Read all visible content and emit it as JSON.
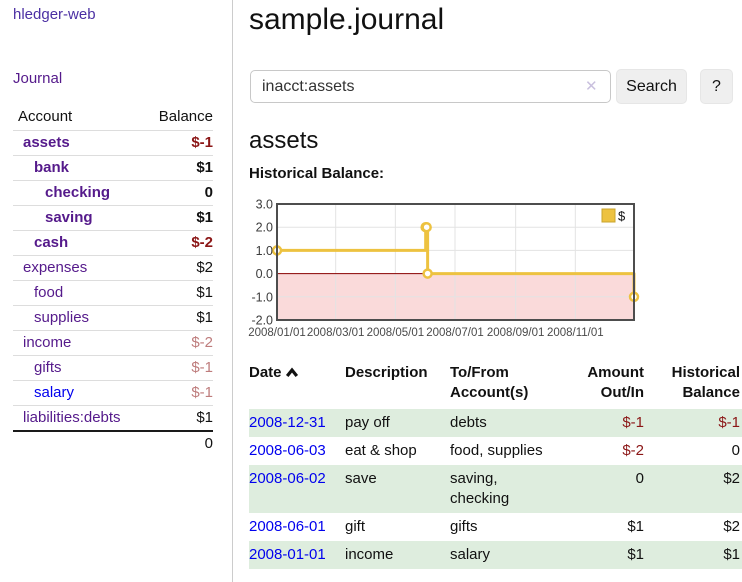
{
  "app": {
    "title": "hledger-web"
  },
  "sidebar": {
    "journal_link": "Journal",
    "accounts": {
      "col_account": "Account",
      "col_balance": "Balance",
      "rows": [
        {
          "name": "assets",
          "balance": "$-1",
          "depth": 0,
          "bold": true,
          "name_color": "purple",
          "balance_color": "negative"
        },
        {
          "name": "bank",
          "balance": "$1",
          "depth": 1,
          "bold": true,
          "name_color": "purple",
          "balance_color": "black"
        },
        {
          "name": "checking",
          "balance": "0",
          "depth": 2,
          "bold": true,
          "name_color": "purple",
          "balance_color": "black"
        },
        {
          "name": "saving",
          "balance": "$1",
          "depth": 2,
          "bold": true,
          "name_color": "purple",
          "balance_color": "black"
        },
        {
          "name": "cash",
          "balance": "$-2",
          "depth": 1,
          "bold": true,
          "name_color": "purple",
          "balance_color": "negative"
        },
        {
          "name": "expenses",
          "balance": "$2",
          "depth": 0,
          "bold": false,
          "name_color": "purple",
          "balance_color": "black"
        },
        {
          "name": "food",
          "balance": "$1",
          "depth": 1,
          "bold": false,
          "name_color": "purple",
          "balance_color": "black"
        },
        {
          "name": "supplies",
          "balance": "$1",
          "depth": 1,
          "bold": false,
          "name_color": "purple",
          "balance_color": "black"
        },
        {
          "name": "income",
          "balance": "$-2",
          "depth": 0,
          "bold": false,
          "name_color": "purple",
          "balance_color": "negative-muted"
        },
        {
          "name": "gifts",
          "balance": "$-1",
          "depth": 1,
          "bold": false,
          "name_color": "purple",
          "balance_color": "negative-muted"
        },
        {
          "name": "salary",
          "balance": "$-1",
          "depth": 1,
          "bold": false,
          "name_color": "blue",
          "balance_color": "negative-muted"
        },
        {
          "name": "liabilities:debts",
          "balance": "$1",
          "depth": 0,
          "bold": false,
          "name_color": "purple",
          "balance_color": "black"
        }
      ],
      "total": "0"
    }
  },
  "main": {
    "title": "sample.journal",
    "search": {
      "value": "inacct:assets",
      "clear_icon": "✕",
      "button": "Search",
      "help_button": "?"
    },
    "heading": "assets",
    "chart_title": "Historical Balance:"
  },
  "chart_data": {
    "type": "line",
    "step": true,
    "title": "Historical Balance:",
    "series": [
      {
        "name": "$",
        "points": [
          {
            "date": "2008-01-01",
            "value": 1
          },
          {
            "date": "2008-06-01",
            "value": 2
          },
          {
            "date": "2008-06-02",
            "value": 2
          },
          {
            "date": "2008-06-03",
            "value": 0
          },
          {
            "date": "2008-12-31",
            "value": -1
          }
        ]
      }
    ],
    "x_range": [
      "2008-01-01",
      "2008-12-31"
    ],
    "x_tick_dates": [
      "2008-01-01",
      "2008-03-01",
      "2008-05-01",
      "2008-07-01",
      "2008-09-01",
      "2008-11-01"
    ],
    "x_tick_labels": [
      "2008/01/01",
      "2008/03/01",
      "2008/05/01",
      "2008/07/01",
      "2008/09/01",
      "2008/11/01"
    ],
    "y_ticks": [
      3,
      2,
      1,
      0,
      -1,
      -2
    ],
    "ylim": [
      -2,
      3
    ],
    "legend": {
      "label": "$",
      "position": "top-right"
    },
    "grid": true,
    "colors": {
      "line": "#EDC240",
      "marker_fill": "#FFFFFF",
      "below_zero_fill": "#FADADA",
      "zero_line": "#8B0000",
      "grid": "#E3E3E3",
      "border": "#4D4D4D"
    }
  },
  "register": {
    "headers": {
      "date": "Date",
      "description": "Description",
      "accounts": "To/From Account(s)",
      "amount": "Amount Out/In",
      "balance": "Historical Balance"
    },
    "rows": [
      {
        "date": "2008-12-31",
        "description": "pay off",
        "accounts": "debts",
        "amount": "$-1",
        "balance": "$-1",
        "amount_negative": true,
        "balance_negative": true
      },
      {
        "date": "2008-06-03",
        "description": "eat & shop",
        "accounts": "food, supplies",
        "amount": "$-2",
        "balance": "0",
        "amount_negative": true,
        "balance_negative": false
      },
      {
        "date": "2008-06-02",
        "description": "save",
        "accounts": "saving, checking",
        "amount": "0",
        "balance": "$2",
        "amount_negative": false,
        "balance_negative": false
      },
      {
        "date": "2008-06-01",
        "description": "gift",
        "accounts": "gifts",
        "amount": "$1",
        "balance": "$2",
        "amount_negative": false,
        "balance_negative": false
      },
      {
        "date": "2008-01-01",
        "description": "income",
        "accounts": "salary",
        "amount": "$1",
        "balance": "$1",
        "amount_negative": false,
        "balance_negative": false
      }
    ]
  }
}
